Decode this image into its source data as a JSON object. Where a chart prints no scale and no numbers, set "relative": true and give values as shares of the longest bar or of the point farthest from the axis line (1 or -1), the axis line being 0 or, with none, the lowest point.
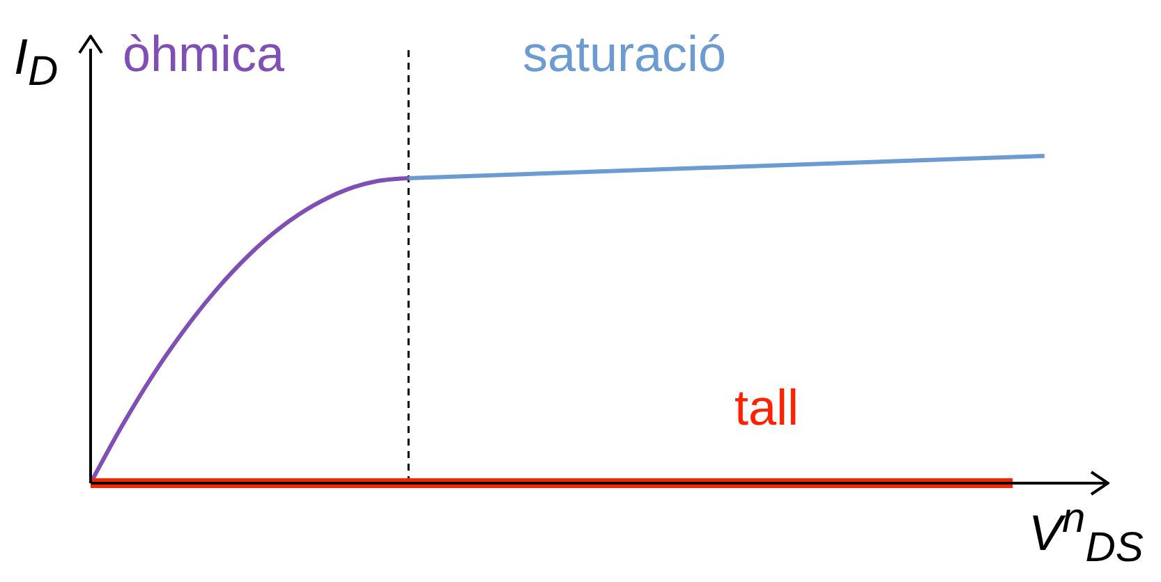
{
  "chart_data": {
    "type": "line",
    "relative": true,
    "xlabel": "V$^{n}$$_{DS}$",
    "ylabel": "I$_{D}$",
    "categories": [
      null,
      null,
      null,
      null,
      null,
      null,
      null,
      null,
      null,
      null,
      null,
      null,
      null,
      null,
      null,
      null,
      null,
      null,
      null,
      null,
      null,
      null,
      null,
      null,
      null,
      null,
      null,
      null,
      null,
      null,
      null,
      null,
      null
    ],
    "series": [
      {
        "name": "òhmica",
        "color": "#7f4fb5",
        "values": [
          0,
          0.177,
          0.336,
          0.475,
          0.596,
          0.699,
          0.783,
          0.848,
          0.895,
          0.923,
          0.932,
          null,
          null,
          null,
          null,
          null,
          null,
          null,
          null,
          null,
          null,
          null,
          null,
          null,
          null,
          null,
          null,
          null,
          null,
          null,
          null,
          null,
          null
        ]
      },
      {
        "name": "saturació",
        "color": "#6b9bd1",
        "values": [
          null,
          null,
          null,
          null,
          null,
          null,
          null,
          null,
          null,
          null,
          0.932,
          null,
          null,
          null,
          null,
          null,
          null,
          null,
          null,
          null,
          null,
          null,
          null,
          null,
          null,
          null,
          null,
          null,
          null,
          null,
          1,
          null,
          null
        ]
      },
      {
        "name": "tall",
        "color": "#ff2200",
        "values": [
          0,
          null,
          null,
          null,
          null,
          null,
          null,
          null,
          null,
          null,
          null,
          null,
          null,
          null,
          null,
          null,
          null,
          null,
          null,
          null,
          null,
          null,
          null,
          null,
          null,
          null,
          null,
          null,
          null,
          0,
          null,
          null,
          null
        ]
      }
    ],
    "legend": false,
    "grid": false,
    "marker": "none",
    "line_style": "solid"
  }
}
